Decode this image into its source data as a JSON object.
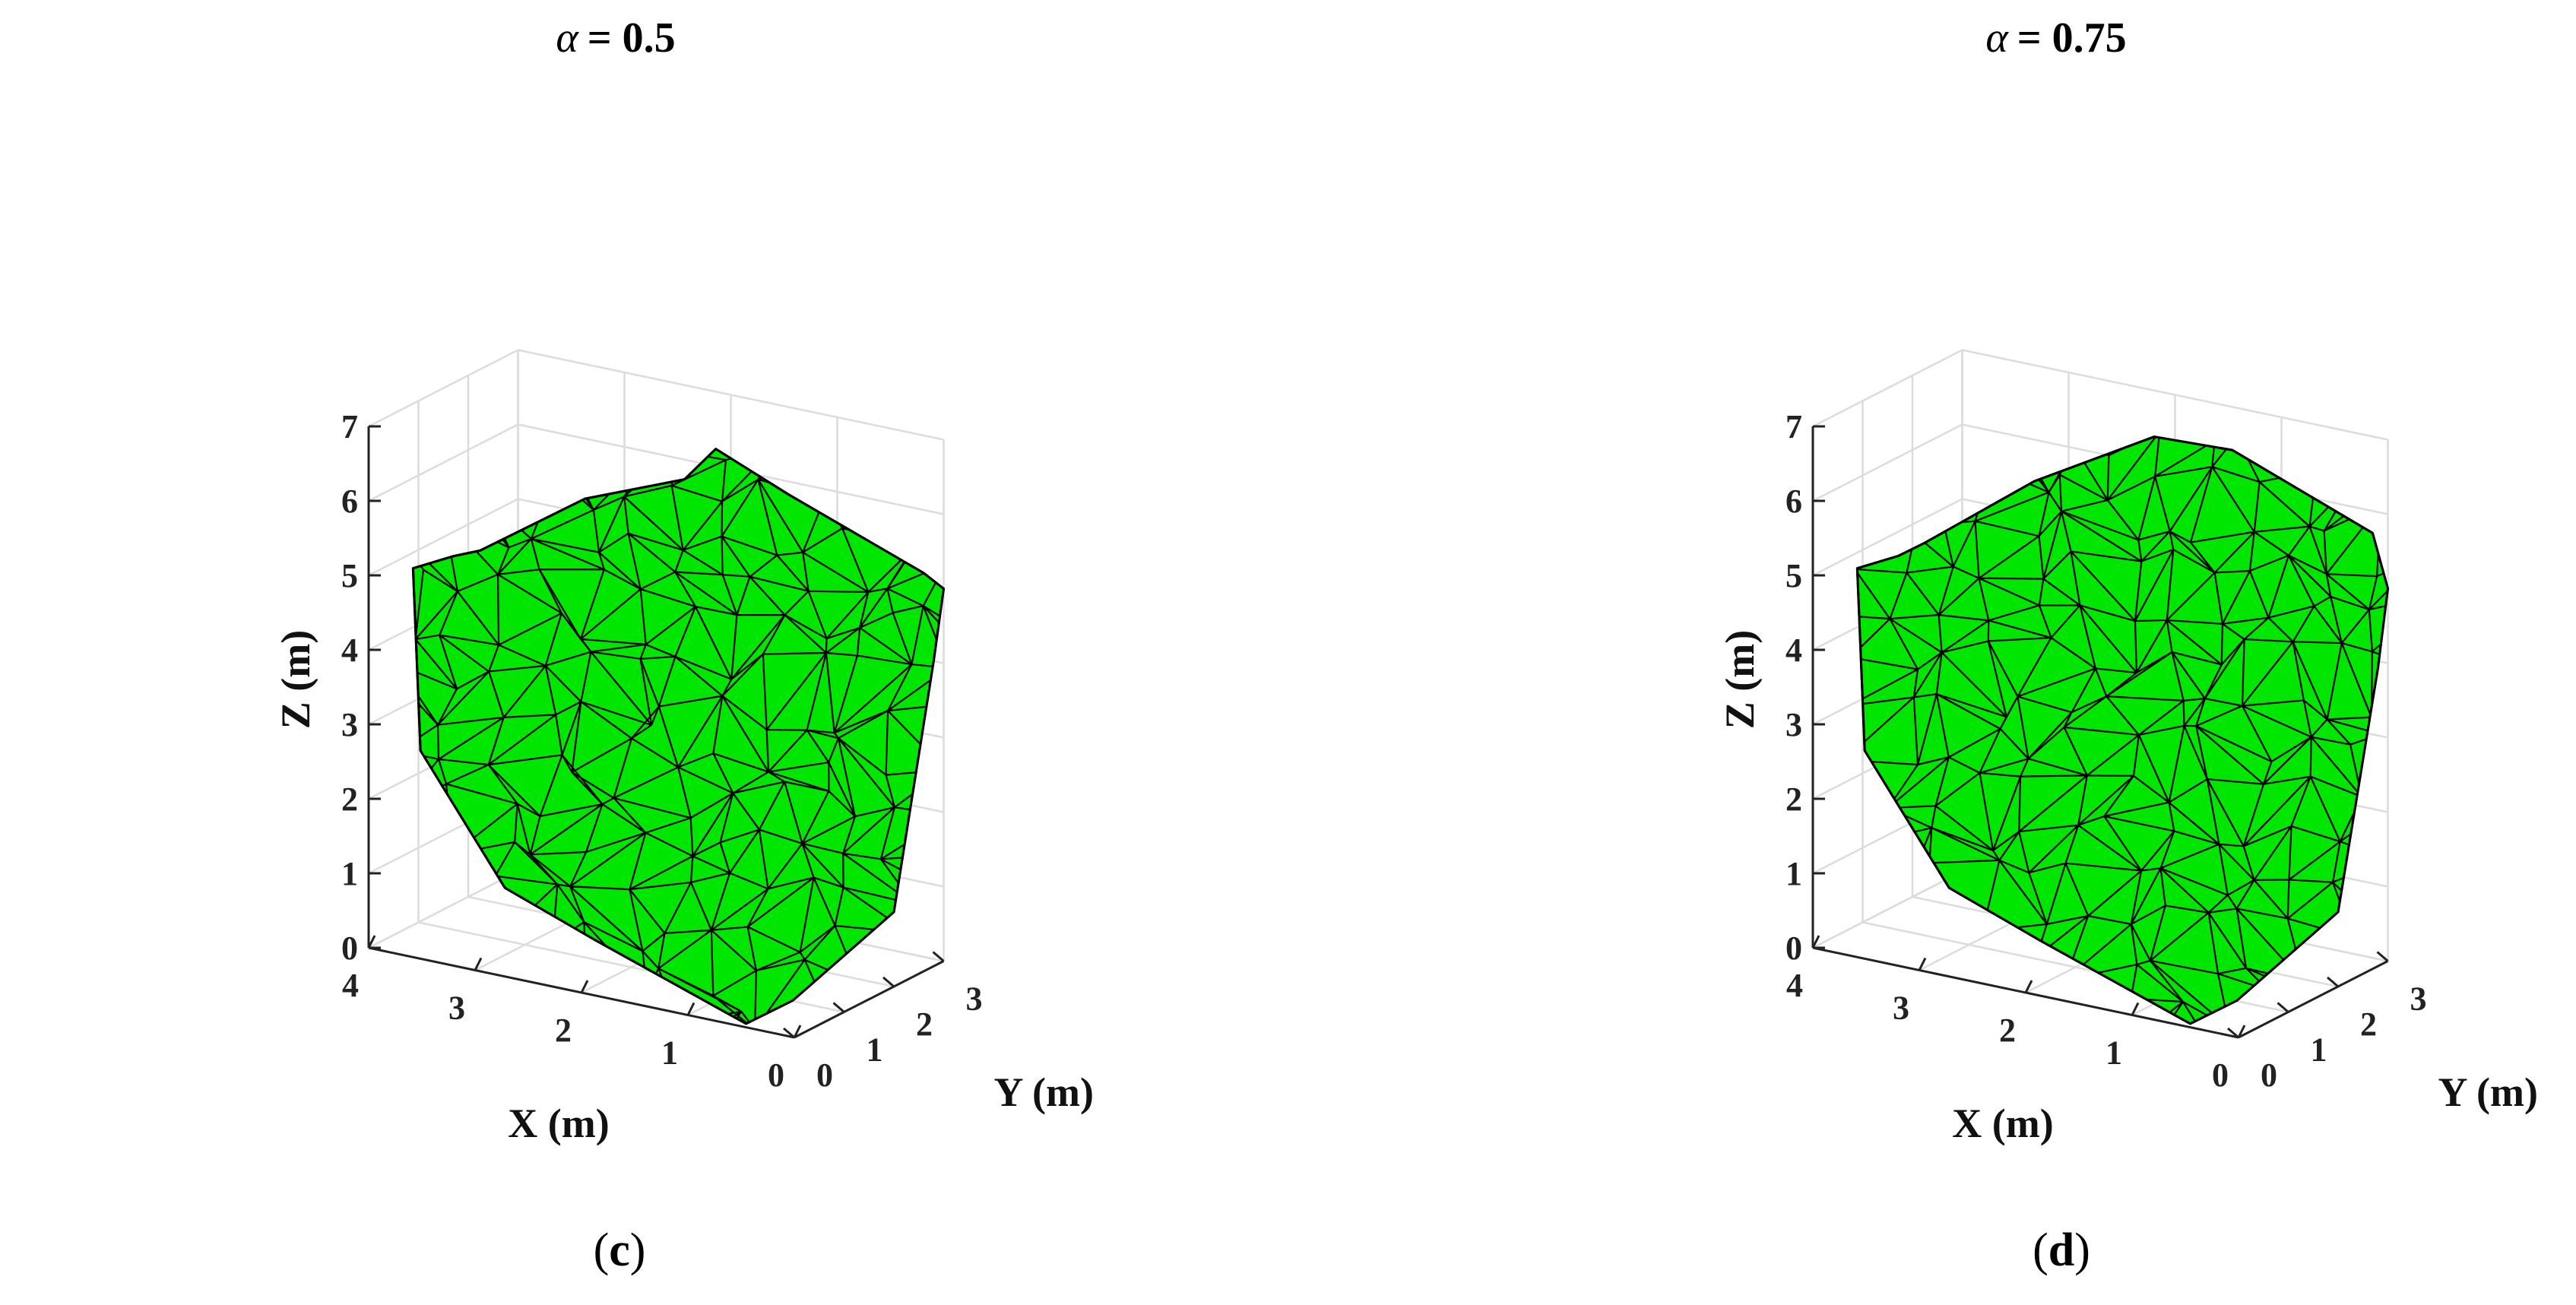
{
  "chart_data": [
    {
      "type": "surface3d",
      "panel_label": "(c)",
      "panel_letter": "c",
      "title_symbol": "α",
      "title_value": "= 0.5",
      "xlabel": "X (m)",
      "ylabel": "Y (m)",
      "zlabel": "Z (m)",
      "x_ticks": [
        "0",
        "1",
        "2",
        "3",
        "4"
      ],
      "y_ticks": [
        "0",
        "1",
        "2",
        "3"
      ],
      "z_ticks": [
        "0",
        "1",
        "2",
        "3",
        "4",
        "5",
        "6",
        "7"
      ],
      "xlim": [
        0,
        4
      ],
      "ylim": [
        0,
        3
      ],
      "zlim": [
        0,
        7
      ],
      "grid": true,
      "surface_color": "#00e600",
      "edge_color": "#000000",
      "mesh_seed": 7,
      "hull_outline_xyz": [
        [
          3.2,
          0.0,
          5.5
        ],
        [
          3.7,
          0.25,
          5.1
        ],
        [
          3.7,
          0.4,
          2.6
        ],
        [
          3.0,
          0.6,
          0.9
        ],
        [
          2.1,
          0.5,
          0.5
        ],
        [
          0.5,
          0.1,
          0.0
        ],
        [
          0.2,
          0.4,
          0.3
        ],
        [
          0.0,
          2.0,
          1.0
        ],
        [
          0.0,
          2.8,
          4.1
        ],
        [
          0.0,
          3.0,
          5.0
        ],
        [
          0.05,
          2.7,
          5.3
        ],
        [
          0.8,
          1.6,
          6.5
        ],
        [
          1.3,
          1.2,
          7.1
        ],
        [
          1.5,
          1.0,
          6.7
        ],
        [
          2.2,
          0.5,
          6.4
        ],
        [
          3.0,
          0.1,
          5.6
        ]
      ]
    },
    {
      "type": "surface3d",
      "panel_label": "(d)",
      "panel_letter": "d",
      "title_symbol": "α",
      "title_value": "= 0.75",
      "xlabel": "X (m)",
      "ylabel": "Y (m)",
      "zlabel": "Z (m)",
      "x_ticks": [
        "0",
        "1",
        "2",
        "3",
        "4"
      ],
      "y_ticks": [
        "0",
        "1",
        "2",
        "3"
      ],
      "z_ticks": [
        "0",
        "1",
        "2",
        "3",
        "4",
        "5",
        "6",
        "7"
      ],
      "xlim": [
        0,
        4
      ],
      "ylim": [
        0,
        3
      ],
      "zlim": [
        0,
        7
      ],
      "grid": true,
      "surface_color": "#00e600",
      "edge_color": "#000000",
      "mesh_seed": 19,
      "hull_outline_xyz": [
        [
          3.2,
          0.0,
          5.5
        ],
        [
          3.7,
          0.25,
          5.1
        ],
        [
          3.7,
          0.4,
          2.6
        ],
        [
          3.0,
          0.6,
          0.9
        ],
        [
          2.1,
          0.5,
          0.5
        ],
        [
          0.5,
          0.1,
          0.0
        ],
        [
          0.2,
          0.4,
          0.3
        ],
        [
          0.0,
          2.0,
          1.0
        ],
        [
          0.0,
          2.8,
          4.0
        ],
        [
          0.0,
          3.0,
          5.0
        ],
        [
          0.05,
          2.8,
          5.8
        ],
        [
          0.9,
          1.8,
          7.0
        ],
        [
          1.4,
          1.3,
          7.2
        ],
        [
          2.2,
          0.6,
          6.6
        ],
        [
          3.0,
          0.1,
          5.7
        ]
      ]
    }
  ]
}
